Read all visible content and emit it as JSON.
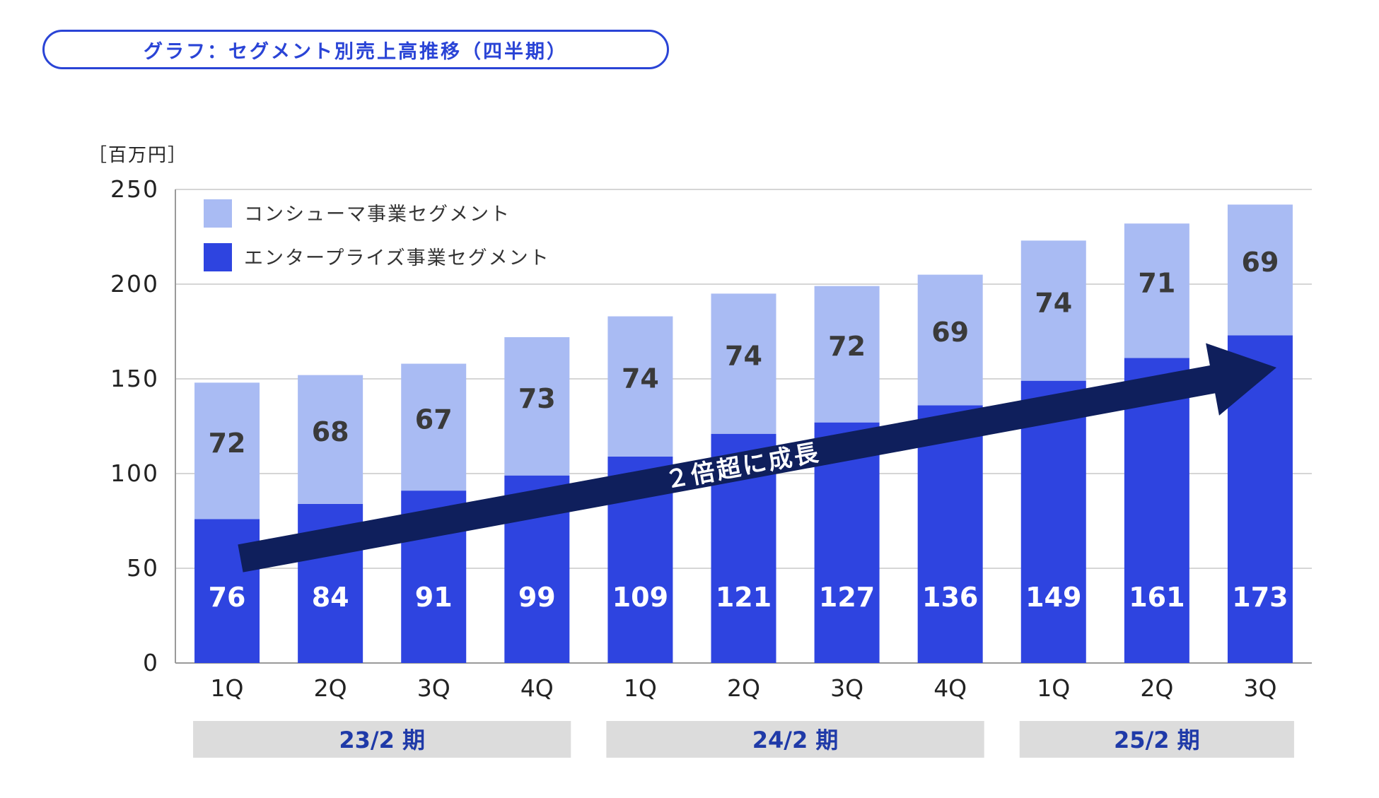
{
  "title": "グラフ：セグメント別売上高推移（四半期）",
  "chart_data": {
    "type": "bar",
    "stacked": true,
    "unit_label": "［百万円］",
    "ylim": [
      0,
      250
    ],
    "yticks": [
      0,
      50,
      100,
      150,
      200,
      250
    ],
    "categories": [
      "1Q",
      "2Q",
      "3Q",
      "4Q",
      "1Q",
      "2Q",
      "3Q",
      "4Q",
      "1Q",
      "2Q",
      "3Q"
    ],
    "series": [
      {
        "name": "エンタープライズ事業セグメント",
        "color": "#2e44e0",
        "label_color": "#ffffff",
        "values": [
          76,
          84,
          91,
          99,
          109,
          121,
          127,
          136,
          149,
          161,
          173
        ]
      },
      {
        "name": "コンシューマ事業セグメント",
        "color": "#a9bbf3",
        "label_color": "#3a3a3a",
        "values": [
          72,
          68,
          67,
          73,
          74,
          74,
          72,
          69,
          74,
          71,
          69
        ]
      }
    ],
    "legend": [
      {
        "label": "コンシューマ事業セグメント",
        "color": "#a9bbf3"
      },
      {
        "label": "エンタープライズ事業セグメント",
        "color": "#2e44e0"
      }
    ],
    "periods": [
      {
        "label": "23/2 期",
        "from": 0,
        "to": 3
      },
      {
        "label": "24/2 期",
        "from": 4,
        "to": 7
      },
      {
        "label": "25/2 期",
        "from": 8,
        "to": 10
      }
    ],
    "annotation": {
      "text": "２倍超に成長",
      "color": "#0f1f5c"
    }
  },
  "colors": {
    "accent": "#2a44d6",
    "grid": "#c8c8c8",
    "axis_text": "#222222",
    "period_bg": "#dcdcdc",
    "period_text": "#1f3aa8"
  }
}
